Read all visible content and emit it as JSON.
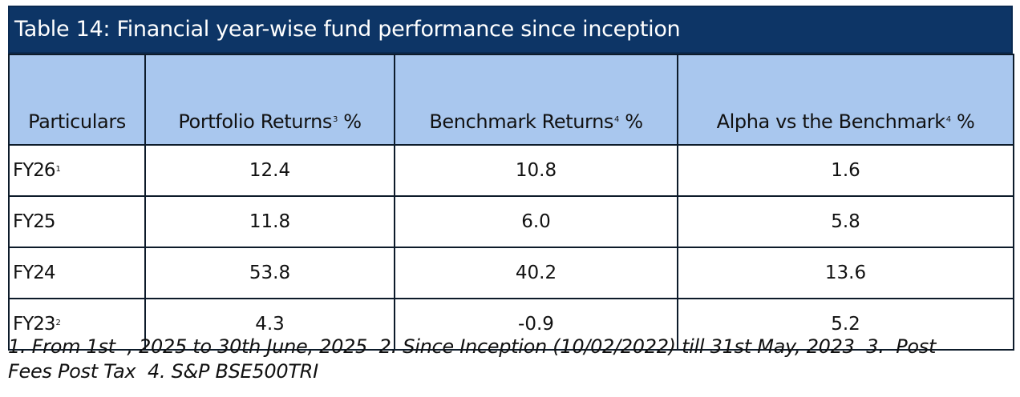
{
  "title": "Table 14: Financial year-wise fund performance since inception",
  "headers": [
    {
      "text": "Particulars",
      "sup": ""
    },
    {
      "text": "Portfolio Returns",
      "sup": "3",
      "suffix": " %"
    },
    {
      "text": "Benchmark Returns",
      "sup": "4",
      "suffix": " %"
    },
    {
      "text": "Alpha vs the Benchmark",
      "sup": "4",
      "suffix": " %"
    }
  ],
  "rows": [
    {
      "label": "FY26",
      "sup": "1",
      "portfolio": "12.4",
      "benchmark": "10.8",
      "alpha": "1.6"
    },
    {
      "label": "FY25",
      "sup": "",
      "portfolio": "11.8",
      "benchmark": "6.0",
      "alpha": "5.8"
    },
    {
      "label": "FY24",
      "sup": "",
      "portfolio": "53.8",
      "benchmark": "40.2",
      "alpha": "13.6"
    },
    {
      "label": "FY23",
      "sup": "2",
      "portfolio": "4.3",
      "benchmark": "-0.9",
      "alpha": "5.2"
    }
  ],
  "footnote_line1": "1. From 1st  , 2025 to 30th June, 2025  2. Since Inception (10/02/2022) till 31st May, 2023  3.  Post",
  "footnote_line2": "Fees Post Tax  4. S&P BSE500TRI"
}
